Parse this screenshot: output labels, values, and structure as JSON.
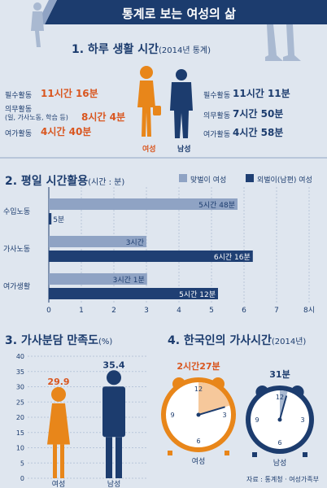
{
  "title": "통계로 보는 여성의 삶",
  "section1": {
    "heading": "1. 하루 생활 시간",
    "heading_note": "(2014년 통계)",
    "female_label": "여성",
    "male_label": "남성",
    "female_rows": [
      {
        "label": "필수활동",
        "value": "11시간 16분"
      },
      {
        "label": "의무활동",
        "sub": "(일, 가사노동, 학습 등)",
        "value": "8시간 4분"
      },
      {
        "label": "여가활동",
        "value": "4시간 40분"
      }
    ],
    "male_rows": [
      {
        "label": "필수활동",
        "value": "11시간 11분"
      },
      {
        "label": "의무활동",
        "value": "7시간 50분"
      },
      {
        "label": "여가활동",
        "value": "4시간 58분"
      }
    ]
  },
  "chart_data": [
    {
      "type": "bar",
      "orientation": "horizontal",
      "title": "2. 평일 시간활용",
      "unit_note": "(시간 : 분)",
      "categories": [
        "수입노동",
        "가사노동",
        "여가생활"
      ],
      "series": [
        {
          "name": "맞벌이 여성",
          "values": [
            5.8,
            3.0,
            3.02
          ],
          "labels": [
            "5시간 48분",
            "3시간",
            "3시간 1분"
          ],
          "color": "#8fa3c4"
        },
        {
          "name": "외벌이(남편) 여성",
          "values": [
            0.08,
            6.27,
            5.2
          ],
          "labels": [
            "5분",
            "6시간 16분",
            "5시간 12분"
          ],
          "color": "#1f3f73"
        }
      ],
      "x_ticks": [
        "0",
        "1",
        "2",
        "3",
        "4",
        "5",
        "6",
        "7",
        "8시"
      ],
      "xlim": [
        0,
        8
      ],
      "grid": true,
      "legend": "top-right"
    },
    {
      "type": "bar",
      "title": "3. 가사분담 만족도",
      "unit_note": "(%)",
      "categories": [
        "여성",
        "남성"
      ],
      "values": [
        29.9,
        35.4
      ],
      "value_labels": [
        "29.9",
        "35.4"
      ],
      "colors": [
        "#e8861a",
        "#1c3c6e"
      ],
      "y_ticks": [
        "0",
        "5",
        "10",
        "15",
        "20",
        "25",
        "30",
        "35",
        "40"
      ],
      "ylim": [
        0,
        40
      ],
      "grid": true
    },
    {
      "type": "pie",
      "title": "4. 한국인의 가사시간",
      "unit_note": "(2014년)",
      "categories": [
        "여성",
        "남성"
      ],
      "values": [
        147,
        31
      ],
      "value_labels": [
        "2시간27분",
        "31분"
      ],
      "clock_numbers": [
        "12",
        "3",
        "6",
        "9"
      ]
    }
  ],
  "source": "자료 : 통계청 · 여성가족부"
}
